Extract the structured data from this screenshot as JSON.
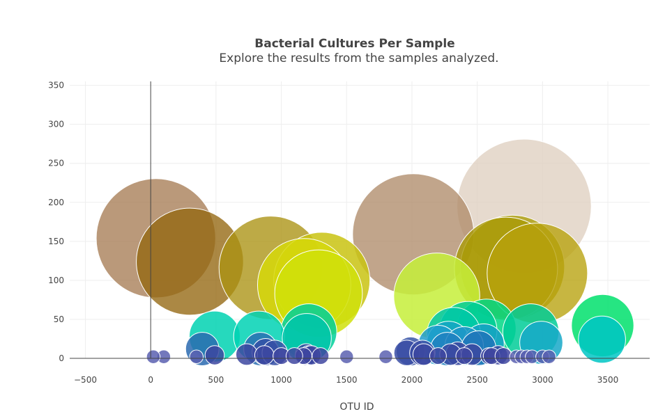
{
  "chart_data": {
    "type": "scatter",
    "subtype": "bubble",
    "title": "Bacterial Cultures Per Sample",
    "subtitle": "Explore the results from the samples analyzed.",
    "xlabel": "OTU ID",
    "ylabel": "",
    "xlim": [
      -620,
      3820
    ],
    "ylim": [
      0,
      355
    ],
    "xticks": [
      -500,
      0,
      500,
      1000,
      1500,
      2000,
      2500,
      3000,
      3500
    ],
    "yticks": [
      0,
      50,
      100,
      150,
      200,
      250,
      300,
      350
    ],
    "grid": true,
    "legend": "none",
    "points": [
      {
        "x": 2859,
        "y": 195,
        "color": "#dfd0c0"
      },
      {
        "x": 40,
        "y": 154,
        "color": "#a67c55"
      },
      {
        "x": 2010,
        "y": 159,
        "color": "#b08c6a"
      },
      {
        "x": 300,
        "y": 124,
        "color": "#94660f"
      },
      {
        "x": 920,
        "y": 116,
        "color": "#aa9212"
      },
      {
        "x": 1310,
        "y": 100,
        "color": "#c9c312"
      },
      {
        "x": 1175,
        "y": 94,
        "color": "#d6d80a"
      },
      {
        "x": 1285,
        "y": 83,
        "color": "#d0e00a"
      },
      {
        "x": 2190,
        "y": 80,
        "color": "#c6ee3a"
      },
      {
        "x": 2770,
        "y": 117,
        "color": "#aa9c05"
      },
      {
        "x": 2720,
        "y": 115,
        "color": "#a99a05"
      },
      {
        "x": 2960,
        "y": 109,
        "color": "#b7a20c"
      },
      {
        "x": 490,
        "y": 28,
        "color": "#00d2b2"
      },
      {
        "x": 830,
        "y": 28,
        "color": "#00d2b4"
      },
      {
        "x": 1210,
        "y": 34,
        "color": "#00d09a"
      },
      {
        "x": 1195,
        "y": 26,
        "color": "#00c4aa"
      },
      {
        "x": 2320,
        "y": 31,
        "color": "#00c8a8"
      },
      {
        "x": 2430,
        "y": 36,
        "color": "#00cc96"
      },
      {
        "x": 2570,
        "y": 38,
        "color": "#00d885"
      },
      {
        "x": 2910,
        "y": 34,
        "color": "#00cc98"
      },
      {
        "x": 3460,
        "y": 42,
        "color": "#00e06c"
      },
      {
        "x": 3455,
        "y": 24,
        "color": "#00c6c4"
      },
      {
        "x": 2990,
        "y": 20,
        "color": "#16a8c8"
      },
      {
        "x": 2550,
        "y": 18,
        "color": "#16a0c6"
      },
      {
        "x": 2200,
        "y": 17,
        "color": "#1e9ccc"
      },
      {
        "x": 2280,
        "y": 20,
        "color": "#16a4c6"
      },
      {
        "x": 2400,
        "y": 16,
        "color": "#1e96c8"
      },
      {
        "x": 2270,
        "y": 12,
        "color": "#2080c0"
      },
      {
        "x": 2510,
        "y": 13,
        "color": "#2074b8"
      },
      {
        "x": 395,
        "y": 12,
        "color": "#2a6ab0"
      },
      {
        "x": 840,
        "y": 12,
        "color": "#2a6eb2"
      },
      {
        "x": 1990,
        "y": 9,
        "color": "#3a56a8"
      },
      {
        "x": 1960,
        "y": 7,
        "color": "#3a4ea4"
      },
      {
        "x": 880,
        "y": 8,
        "color": "#3450a6"
      },
      {
        "x": 950,
        "y": 7,
        "color": "#3650a6"
      },
      {
        "x": 2080,
        "y": 7,
        "color": "#3a4ea4"
      },
      {
        "x": 2090,
        "y": 5,
        "color": "#3c48a0"
      },
      {
        "x": 2350,
        "y": 6,
        "color": "#3c48a0"
      },
      {
        "x": 2295,
        "y": 5,
        "color": "#3a4aa2"
      },
      {
        "x": 2460,
        "y": 5,
        "color": "#3c48a0"
      },
      {
        "x": 735,
        "y": 5,
        "color": "#3c46a0"
      },
      {
        "x": 1190,
        "y": 5,
        "color": "#3c46a0"
      },
      {
        "x": 1210,
        "y": 4,
        "color": "#3c46a0"
      },
      {
        "x": 1230,
        "y": 4,
        "color": "#3c46a0"
      },
      {
        "x": 2660,
        "y": 4,
        "color": "#3c46a0"
      },
      {
        "x": 490,
        "y": 4,
        "color": "#3c46a0"
      },
      {
        "x": 870,
        "y": 4,
        "color": "#3c46a0"
      },
      {
        "x": 2200,
        "y": 3,
        "color": "#4046a0"
      },
      {
        "x": 2590,
        "y": 3,
        "color": "#4046a0"
      },
      {
        "x": 2610,
        "y": 3,
        "color": "#4046a0"
      },
      {
        "x": 2700,
        "y": 3,
        "color": "#4046a0"
      },
      {
        "x": 2400,
        "y": 3,
        "color": "#4046a0"
      },
      {
        "x": 1170,
        "y": 3,
        "color": "#4046a0"
      },
      {
        "x": 1000,
        "y": 3,
        "color": "#4046a0"
      },
      {
        "x": 1100,
        "y": 3,
        "color": "#4046a0"
      },
      {
        "x": 1300,
        "y": 3,
        "color": "#4046a0"
      },
      {
        "x": 1800,
        "y": 2,
        "color": "#5a60b0"
      },
      {
        "x": 2800,
        "y": 2,
        "color": "#5a60b0"
      },
      {
        "x": 2840,
        "y": 2,
        "color": "#5a60b0"
      },
      {
        "x": 2880,
        "y": 2,
        "color": "#5a60b0"
      },
      {
        "x": 2920,
        "y": 2,
        "color": "#5a60b0"
      },
      {
        "x": 3000,
        "y": 2,
        "color": "#5a60b0"
      },
      {
        "x": 3050,
        "y": 2,
        "color": "#5a60b0"
      },
      {
        "x": 350,
        "y": 2,
        "color": "#5a60b0"
      },
      {
        "x": 100,
        "y": 2,
        "color": "#5a60b0"
      },
      {
        "x": 20,
        "y": 2,
        "color": "#5a60b0"
      },
      {
        "x": 1500,
        "y": 2,
        "color": "#5a60b0"
      }
    ]
  }
}
